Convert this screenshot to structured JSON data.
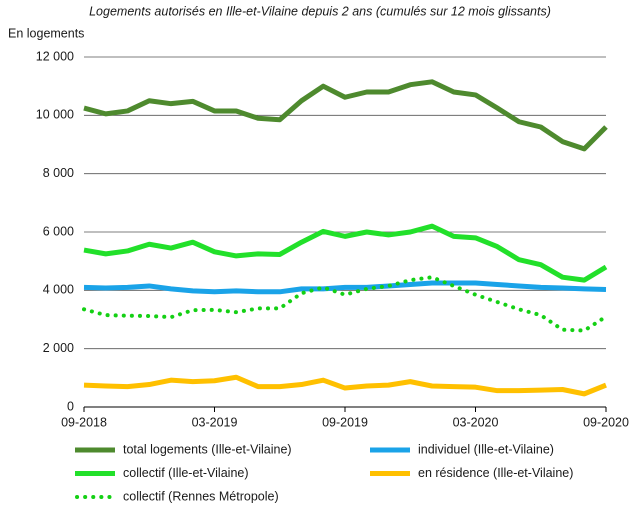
{
  "chart_data": {
    "type": "line",
    "title": "Logements autorisés en Ille-et-Vilaine depuis 2 ans (cumulés sur 12 mois glissants)",
    "y_label": "En logements",
    "categories": [
      "09-2018",
      null,
      null,
      null,
      null,
      null,
      "03-2019",
      null,
      null,
      null,
      null,
      null,
      "09-2019",
      null,
      null,
      null,
      null,
      null,
      "03-2020",
      null,
      null,
      null,
      null,
      null,
      "09-2020"
    ],
    "ylim": [
      0,
      12000
    ],
    "yticks": [
      0,
      {
        "value": 2000,
        "label": "2 000"
      },
      {
        "value": 4000,
        "label": "4 000"
      },
      {
        "value": 6000,
        "label": "6 000"
      },
      {
        "value": 8000,
        "label": "8 000"
      },
      {
        "value": 10000,
        "label": "10 000"
      },
      {
        "value": 12000,
        "label": "12 000"
      }
    ],
    "grid": true,
    "series": [
      {
        "name": "total logements (Ille-et-Vilaine)",
        "color": "#4e8a2e",
        "style": "solid",
        "values": [
          10250,
          10050,
          10150,
          10500,
          10400,
          10480,
          10150,
          10150,
          9900,
          9850,
          10500,
          11000,
          10620,
          10800,
          10800,
          11050,
          11150,
          10800,
          10700,
          10250,
          9780,
          9600,
          9100,
          8850,
          9600
        ]
      },
      {
        "name": "individuel (Ille-et-Vilaine)",
        "color": "#1aa3e8",
        "style": "solid",
        "values": [
          4100,
          4080,
          4100,
          4150,
          4050,
          3980,
          3950,
          3980,
          3950,
          3950,
          4050,
          4050,
          4100,
          4100,
          4150,
          4200,
          4250,
          4250,
          4250,
          4200,
          4150,
          4100,
          4080,
          4050,
          4030
        ]
      },
      {
        "name": "collectif (Ille-et-Vilaine)",
        "color": "#22e02a",
        "style": "solid",
        "values": [
          5380,
          5250,
          5350,
          5580,
          5450,
          5650,
          5320,
          5180,
          5250,
          5230,
          5650,
          6020,
          5850,
          6000,
          5900,
          6000,
          6200,
          5850,
          5800,
          5500,
          5050,
          4880,
          4450,
          4350,
          4800
        ]
      },
      {
        "name": "en résidence (Ille-et-Vilaine)",
        "color": "#ffc000",
        "style": "solid",
        "values": [
          750,
          720,
          700,
          770,
          920,
          870,
          900,
          1020,
          700,
          700,
          770,
          920,
          650,
          720,
          750,
          870,
          720,
          700,
          680,
          560,
          560,
          580,
          600,
          450,
          750
        ]
      },
      {
        "name": "collectif (Rennes Métropole)",
        "color": "#14d014",
        "style": "dotted",
        "values": [
          3350,
          3150,
          3130,
          3120,
          3080,
          3320,
          3330,
          3250,
          3380,
          3380,
          3900,
          4100,
          3850,
          4050,
          4150,
          4350,
          4450,
          4150,
          3850,
          3600,
          3350,
          3150,
          2650,
          2620,
          3100
        ]
      }
    ]
  }
}
